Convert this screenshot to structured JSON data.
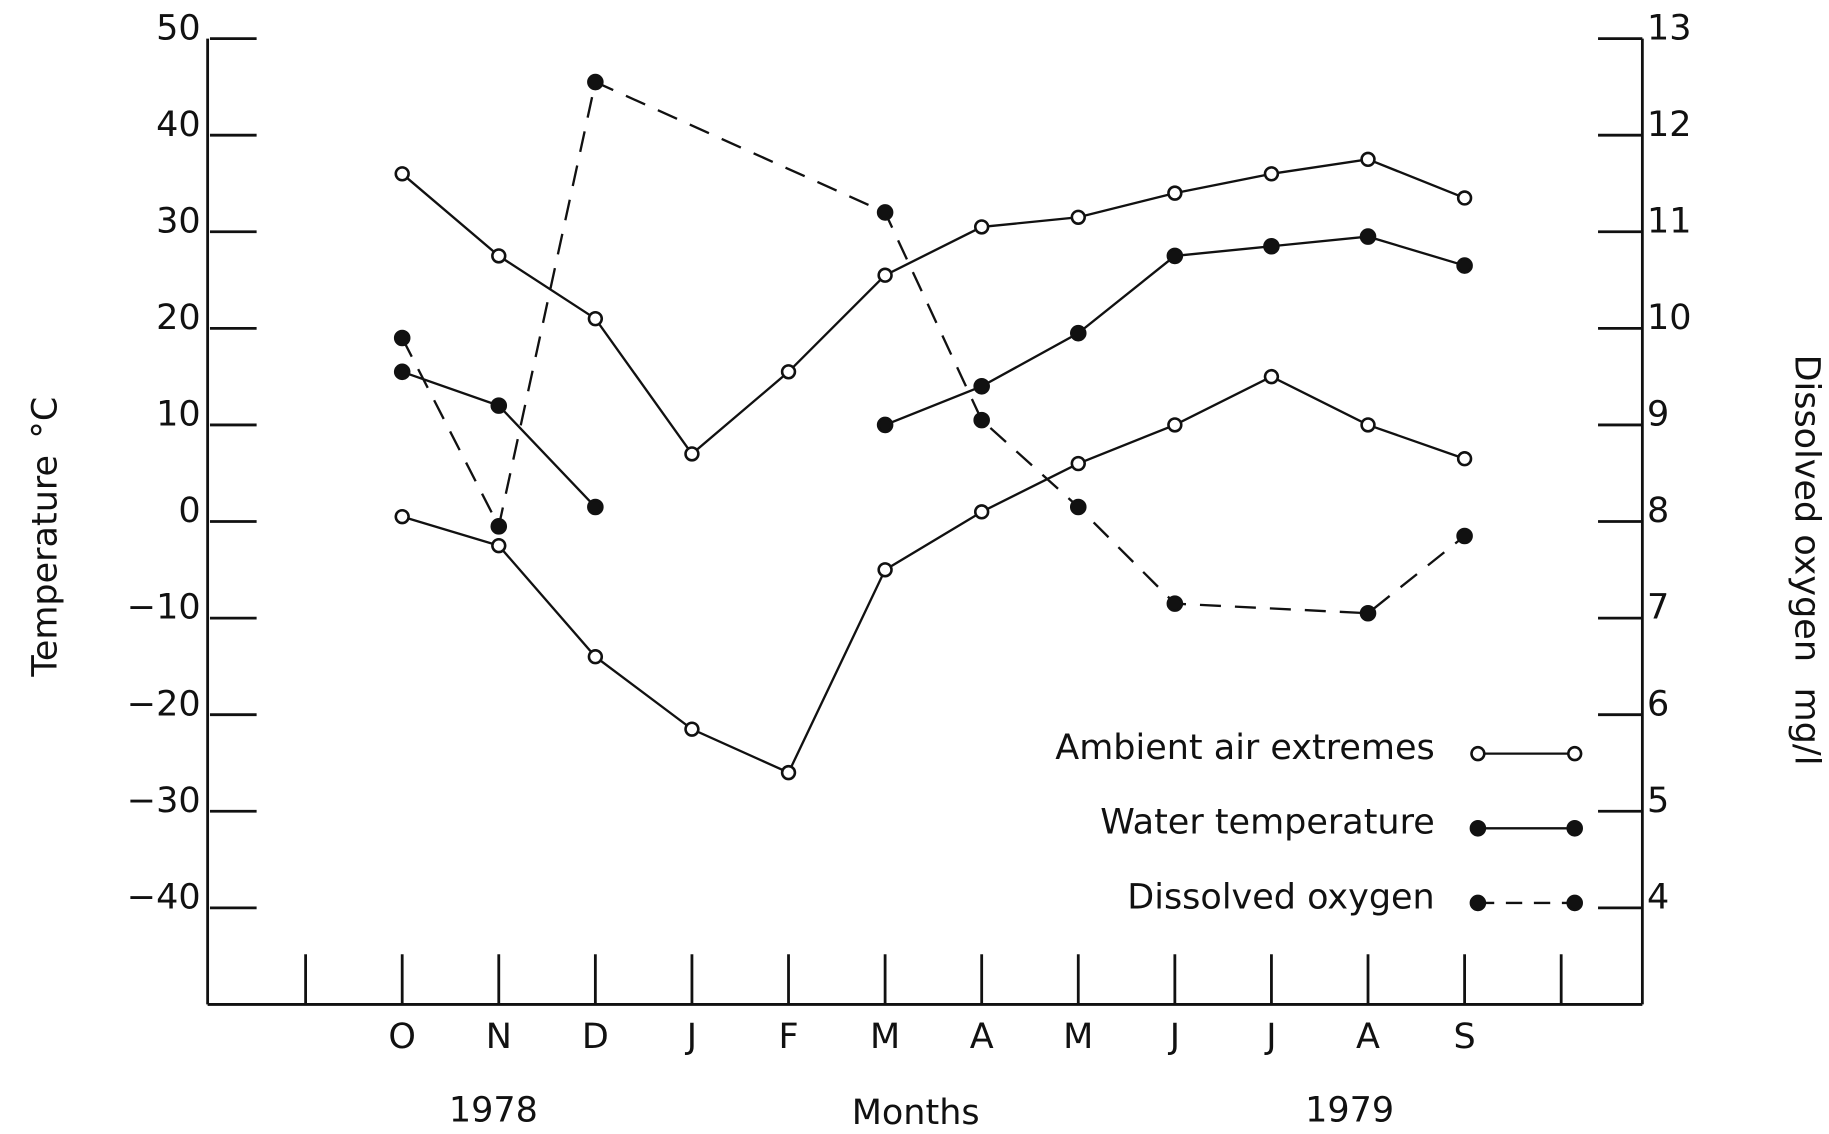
{
  "chart_data": {
    "type": "line",
    "categories": [
      null,
      "O",
      "N",
      "D",
      "J",
      "F",
      "M",
      "A",
      "M",
      "J",
      "J",
      "A",
      "S",
      null
    ],
    "year_labels": [
      "1978",
      "1979"
    ],
    "xlabel": "Months",
    "ylabel": "Temperature",
    "yunit": "°C",
    "y2label": "Dissolved oxygen",
    "y2unit": "mg/l",
    "ylim": [
      -50,
      50
    ],
    "yticks": [
      {
        "value": -40,
        "label": "−40"
      },
      {
        "value": -30,
        "label": "−30"
      },
      {
        "value": -20,
        "label": "−20"
      },
      {
        "value": -10,
        "label": "−10"
      },
      0,
      10,
      20,
      30,
      40,
      50
    ],
    "y2lim": [
      3,
      13
    ],
    "y2ticks": [
      4,
      5,
      6,
      7,
      8,
      9,
      10,
      11,
      12,
      13
    ],
    "legend": "lower right",
    "series": [
      {
        "name": "Ambient air extremes",
        "color": "#111",
        "marker": "open",
        "dash": false,
        "connect_gaps": false,
        "values": [
          null,
          36,
          27.5,
          21,
          7,
          15.5,
          25.5,
          30.5,
          31.5,
          34,
          36,
          37.5,
          33.5,
          null
        ]
      },
      {
        "name": "Ambient air extremes",
        "color": "#111",
        "marker": "open",
        "dash": false,
        "connect_gaps": false,
        "values": [
          null,
          0.5,
          -2.5,
          -14,
          -21.5,
          -26,
          -5,
          1,
          6,
          10,
          15,
          10,
          6.5,
          null
        ]
      },
      {
        "name": "Water temperature",
        "color": "#111",
        "marker": "filled",
        "dash": false,
        "connect_gaps": false,
        "values": [
          null,
          15.5,
          12,
          1.5,
          null,
          null,
          10,
          14,
          19.5,
          27.5,
          28.5,
          29.5,
          26.5,
          null
        ]
      },
      {
        "name": "Dissolved oxygen",
        "color": "#111",
        "marker": "filled",
        "dash": true,
        "connect_gaps": true,
        "axis": "y2",
        "values": [
          null,
          9.9,
          7.95,
          12.55,
          null,
          null,
          11.2,
          9.05,
          8.15,
          7.15,
          null,
          7.05,
          7.85,
          null
        ]
      }
    ]
  }
}
